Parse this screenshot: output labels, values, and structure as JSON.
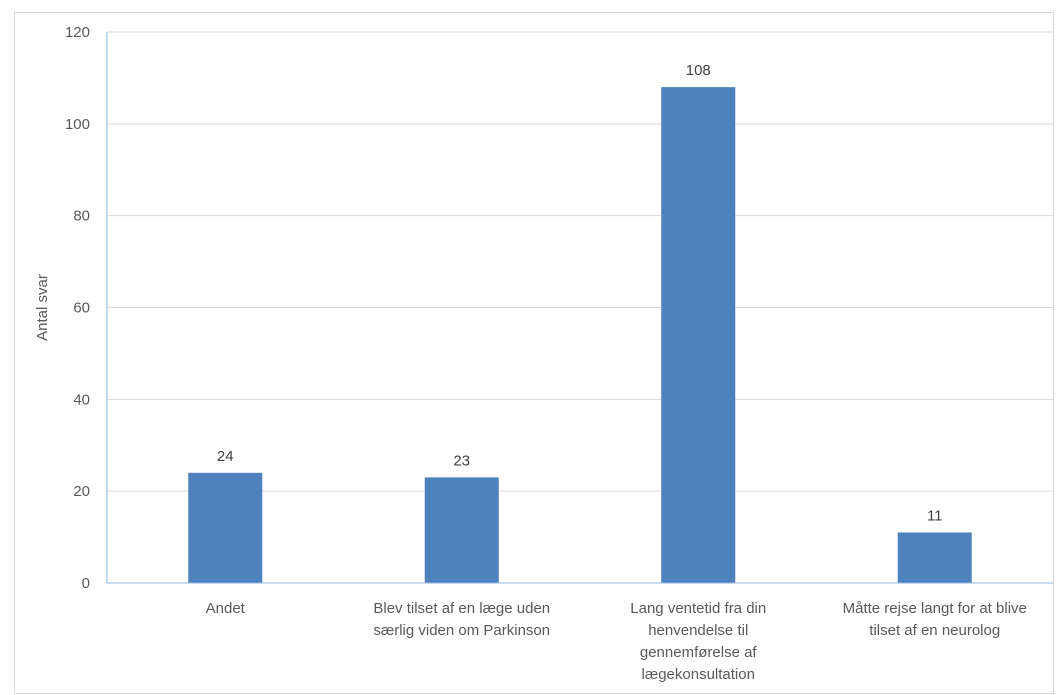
{
  "chart_data": {
    "type": "bar",
    "title": "",
    "xlabel": "",
    "ylabel": "Antal svar",
    "ylim": [
      0,
      120
    ],
    "yticks": [
      0,
      20,
      40,
      60,
      80,
      100,
      120
    ],
    "grid": true,
    "legend": "none",
    "categories": [
      [
        "Andet"
      ],
      [
        "Blev tilset af en læge uden",
        "særlig viden om Parkinson"
      ],
      [
        "Lang ventetid fra din",
        "henvendelse til",
        "gennemførelse af",
        "lægekonsultation"
      ],
      [
        "Måtte rejse langt for at blive",
        "tilset af en neurolog"
      ]
    ],
    "values": [
      24,
      23,
      108,
      11
    ],
    "data_labels": [
      "24",
      "23",
      "108",
      "11"
    ],
    "colors": {
      "bar": "#4f81bd",
      "grid": "#d9d9d9",
      "axis": "#8eb4e3"
    }
  }
}
